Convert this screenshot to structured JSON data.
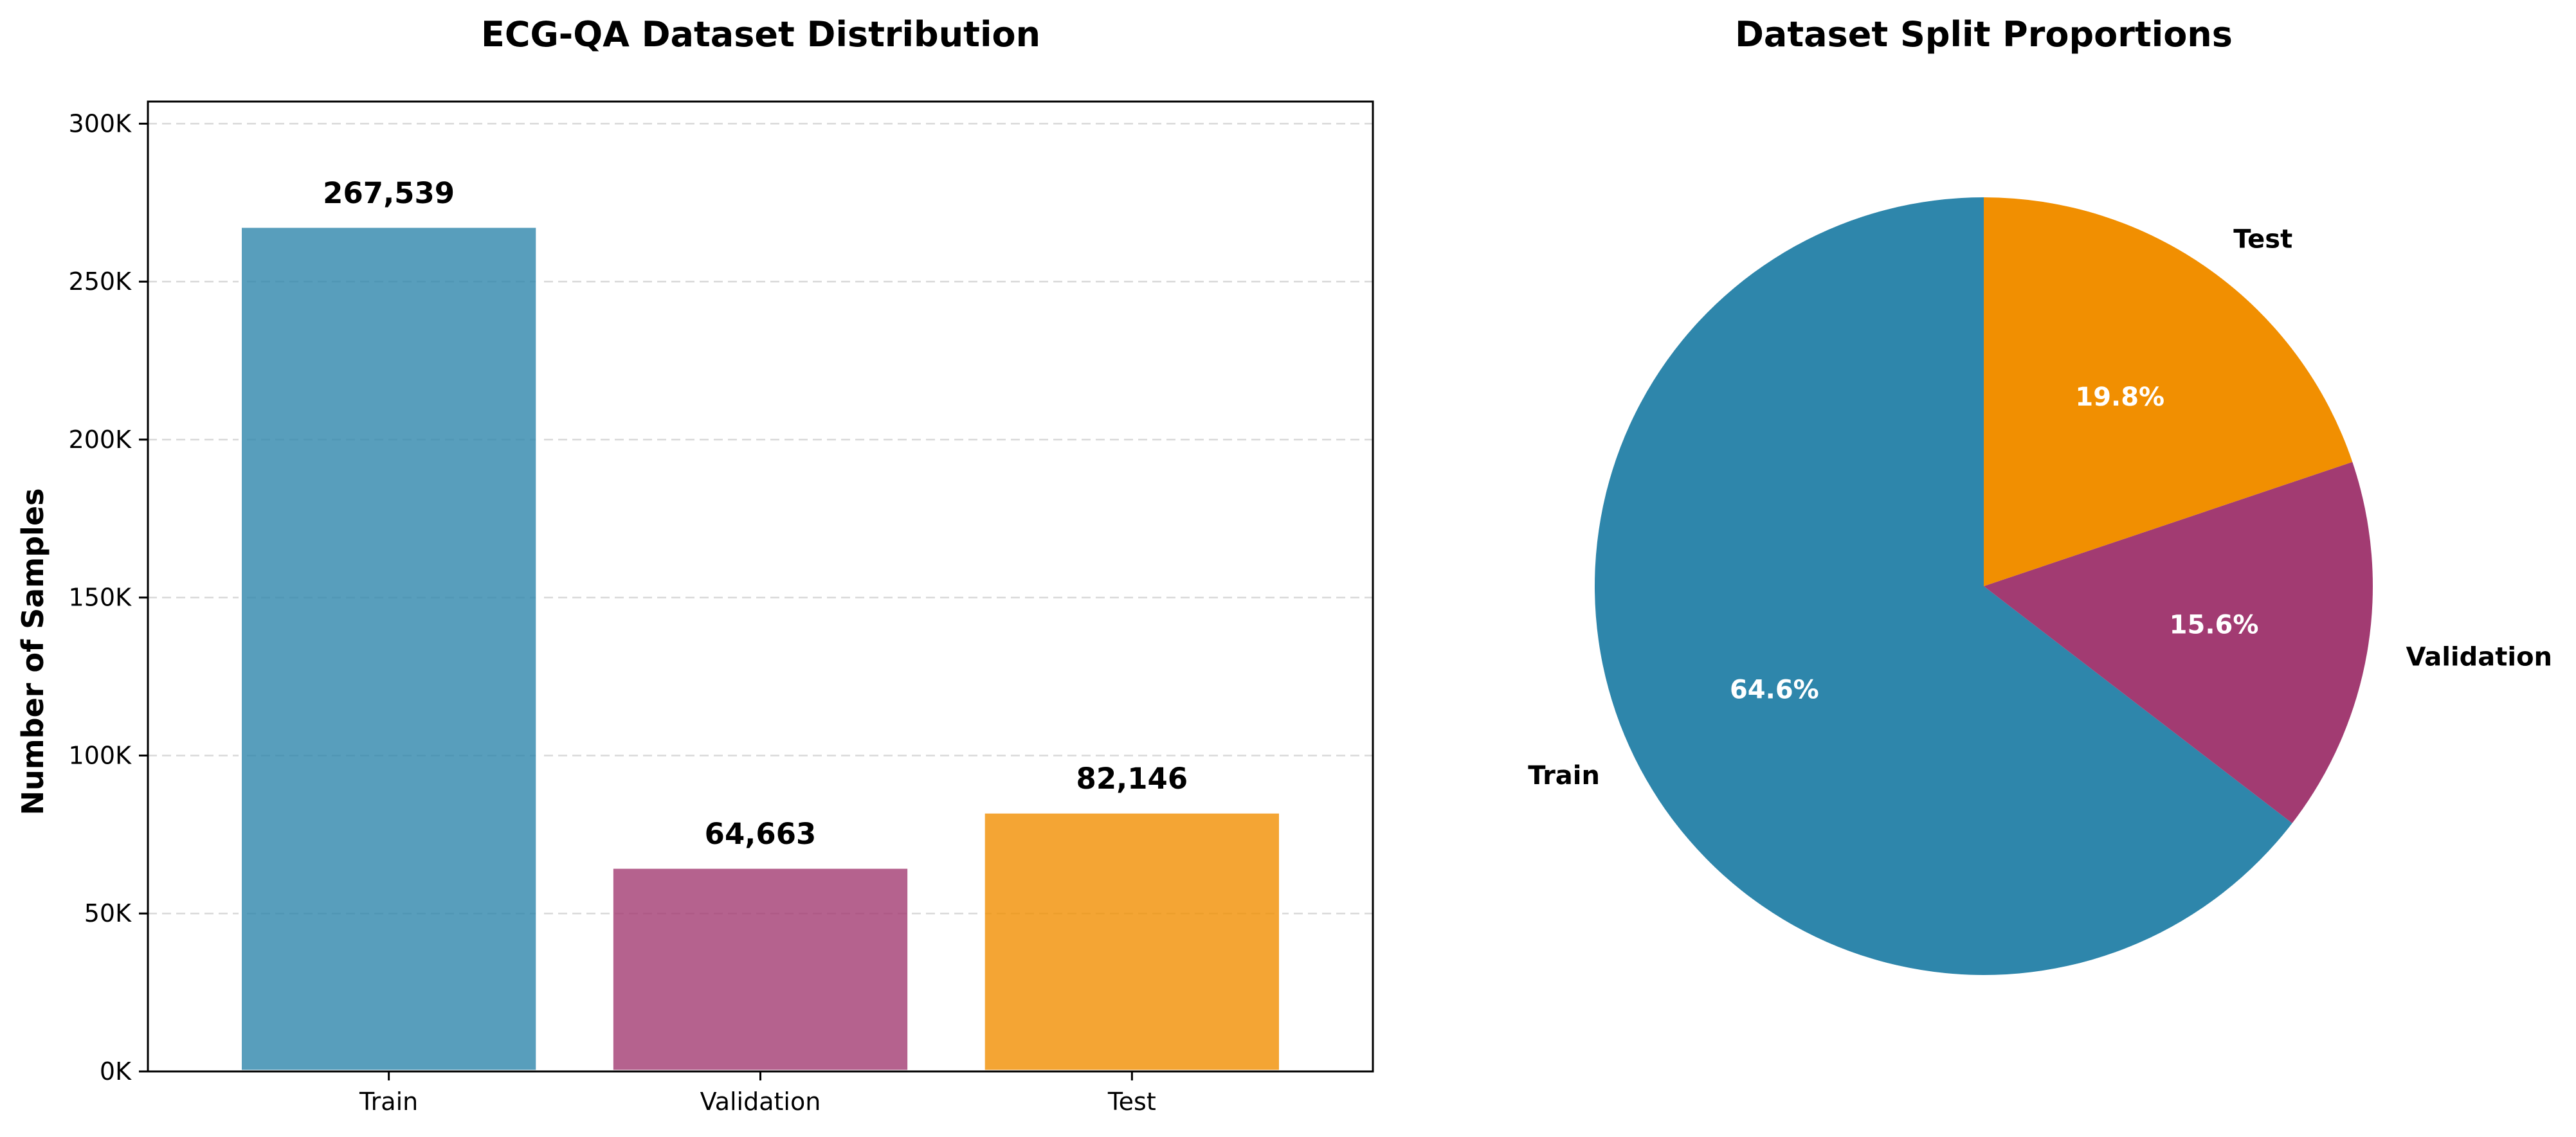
{
  "chart_data": [
    {
      "type": "bar",
      "title": "ECG-QA Dataset Distribution",
      "xlabel": "",
      "ylabel": "Number of Samples",
      "categories": [
        "Train",
        "Validation",
        "Test"
      ],
      "values": [
        267539,
        64663,
        82146
      ],
      "value_labels": [
        "267,539",
        "64,663",
        "82,146"
      ],
      "colors": [
        "#2E86AB",
        "#A23B72",
        "#F18F01"
      ],
      "ylim": [
        0,
        307000
      ],
      "yticks": [
        0,
        50000,
        100000,
        150000,
        200000,
        250000,
        300000
      ],
      "ytick_labels": [
        "0K",
        "50K",
        "100K",
        "150K",
        "200K",
        "250K",
        "300K"
      ],
      "grid": "y-dashed"
    },
    {
      "type": "pie",
      "title": "Dataset Split Proportions",
      "labels": [
        "Train",
        "Validation",
        "Test"
      ],
      "values": [
        267539,
        64663,
        82146
      ],
      "percent_labels": [
        "64.6%",
        "15.6%",
        "19.8%"
      ],
      "colors": [
        "#2E86AB",
        "#A23B72",
        "#F18F01"
      ],
      "start_angle": 90,
      "direction": "counterclockwise"
    }
  ]
}
